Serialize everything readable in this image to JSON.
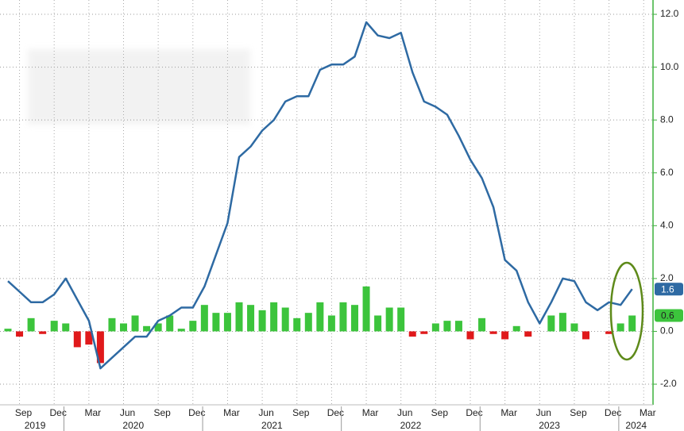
{
  "chart_data": {
    "type": "combo",
    "categories": [
      null,
      "Sep",
      null,
      null,
      "Dec",
      null,
      null,
      "Mar",
      null,
      null,
      "Jun",
      null,
      null,
      "Sep",
      null,
      null,
      "Dec",
      null,
      null,
      "Mar",
      null,
      null,
      "Jun",
      null,
      null,
      "Sep",
      null,
      null,
      "Dec",
      null,
      null,
      "Mar",
      null,
      null,
      "Jun",
      null,
      null,
      "Sep",
      null,
      null,
      "Dec",
      null,
      null,
      "Mar",
      null,
      null,
      "Jun",
      null,
      null,
      "Sep",
      null,
      null,
      "Dec",
      null,
      null,
      "Mar"
    ],
    "year_labels": [
      "2019",
      "2020",
      "2021",
      "2022",
      "2023",
      "2024"
    ],
    "series": [
      {
        "type": "bar",
        "color": "#3cc43c",
        "negative_color": "#e0191b",
        "values": [
          0.1,
          -0.2,
          0.5,
          -0.1,
          0.4,
          0.3,
          -0.6,
          -0.5,
          -1.2,
          0.5,
          0.3,
          0.6,
          0.2,
          0.3,
          0.6,
          0.1,
          0.4,
          1.0,
          0.7,
          0.7,
          1.1,
          1.0,
          0.8,
          1.1,
          0.9,
          0.5,
          0.7,
          1.1,
          0.6,
          1.1,
          1.0,
          1.7,
          0.6,
          0.9,
          0.9,
          -0.2,
          -0.1,
          0.3,
          0.4,
          0.4,
          -0.3,
          0.5,
          -0.1,
          -0.3,
          0.2,
          -0.2,
          0.0,
          0.6,
          0.7,
          0.3,
          -0.3,
          0.0,
          -0.1,
          0.3,
          0.6,
          null
        ]
      },
      {
        "type": "line",
        "color": "#2e6aa3",
        "values": [
          1.9,
          1.5,
          1.1,
          1.1,
          1.4,
          2.0,
          1.2,
          0.4,
          -1.4,
          -1.0,
          -0.6,
          -0.2,
          -0.2,
          0.4,
          0.6,
          0.9,
          0.9,
          1.7,
          2.9,
          4.1,
          6.6,
          7.0,
          7.6,
          8.0,
          8.7,
          8.9,
          8.9,
          9.9,
          10.1,
          10.1,
          10.4,
          11.7,
          11.2,
          11.1,
          11.3,
          9.8,
          8.7,
          8.5,
          8.2,
          7.4,
          6.5,
          5.8,
          4.7,
          2.7,
          2.3,
          1.1,
          0.3,
          1.1,
          2.0,
          1.9,
          1.1,
          0.8,
          1.1,
          1.0,
          1.6,
          null
        ]
      }
    ],
    "ylim": [
      -2.6,
      12.5
    ],
    "yticks": [
      {
        "value": -2,
        "label": "-2.0"
      },
      {
        "value": 0,
        "label": "0.0"
      },
      {
        "value": 2,
        "label": "2.0"
      },
      {
        "value": 4,
        "label": "4.0"
      },
      {
        "value": 6,
        "label": "6.0"
      },
      {
        "value": 8,
        "label": "8.0"
      },
      {
        "value": 10,
        "label": "10.0"
      },
      {
        "value": 12,
        "label": "12.0"
      }
    ],
    "grid": true,
    "axis_color": "#3cb03c"
  }
}
